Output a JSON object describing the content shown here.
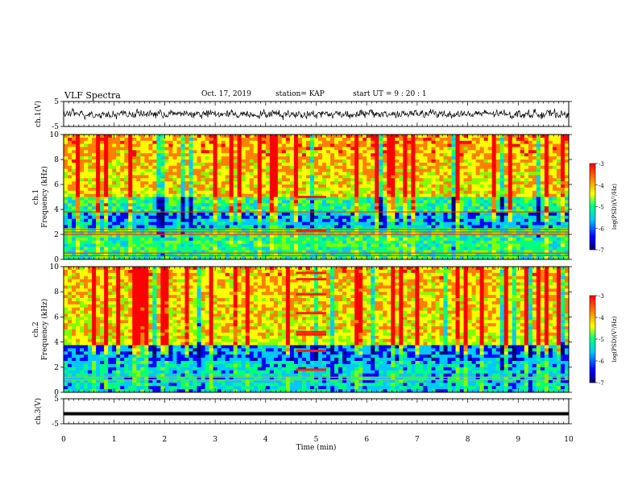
{
  "header": {
    "title": "VLF Spectra",
    "date": "Oct. 17, 2019",
    "station": "station= KAP",
    "start": "start  UT =   9 : 20 : 1"
  },
  "chart_data": [
    {
      "type": "line",
      "panel": "ch1-waveform",
      "ylabel": "ch.1(V)",
      "ylim": [
        -5,
        5
      ],
      "ytick_labels": [
        "5",
        "-5"
      ],
      "xlim": [
        0,
        10
      ],
      "description": "noisy waveform centered near 0 V, amplitude roughly ±2 V"
    },
    {
      "type": "heatmap",
      "panel": "ch1-spectrogram",
      "ylabel": "ch.1 Frequency (kHz)",
      "ylim": [
        0,
        10
      ],
      "ytick_labels": [
        "0",
        "2",
        "4",
        "6",
        "8",
        "10"
      ],
      "xlim": [
        0,
        10
      ],
      "colorbar": {
        "label": "log(PSD)(V²/Hz)",
        "range": [
          -7,
          -3
        ],
        "tick_labels": [
          "-3",
          "-4",
          "-5",
          "-6",
          "-7"
        ]
      }
    },
    {
      "type": "heatmap",
      "panel": "ch2-spectrogram",
      "ylabel": "ch.2 Frequency (kHz)",
      "ylim": [
        0,
        10
      ],
      "ytick_labels": [
        "0",
        "2",
        "4",
        "6",
        "8",
        "10"
      ],
      "xlim": [
        0,
        10
      ],
      "colorbar": {
        "label": "log(PSD)(V²/Hz)",
        "range": [
          -7,
          -3
        ],
        "tick_labels": [
          "-3",
          "-4",
          "-5",
          "-6",
          "-7"
        ]
      }
    },
    {
      "type": "line",
      "panel": "ch3-waveform",
      "ylabel": "ch.3(V)",
      "ylim": [
        -5,
        5
      ],
      "ytick_labels": [
        "5",
        "-5"
      ],
      "xlim": [
        0,
        10
      ],
      "description": "flat thick line near -1 V"
    }
  ],
  "xaxis": {
    "label": "Time (min)",
    "tick_labels": [
      "0",
      "1",
      "2",
      "3",
      "4",
      "5",
      "6",
      "7",
      "8",
      "9",
      "10"
    ]
  },
  "colors": {
    "colormap": [
      "#00007a",
      "#0000ff",
      "#00c8ff",
      "#00ff80",
      "#80ff00",
      "#ffff00",
      "#ff8000",
      "#ff0000"
    ]
  }
}
